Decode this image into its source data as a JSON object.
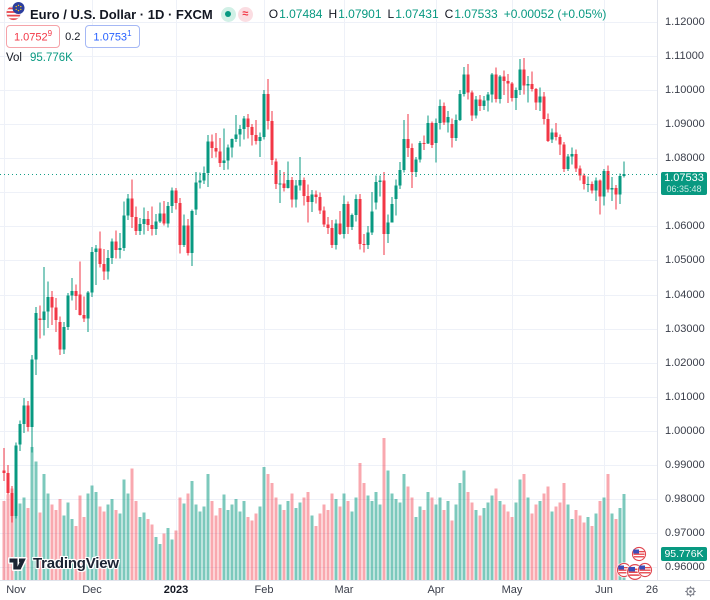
{
  "header": {
    "symbol_title": "Euro / U.S. Dollar · 1D · FXCM",
    "status": {
      "market_open_icon": "green-dot",
      "delayed_icon": "≈"
    },
    "ohlc": {
      "o_label": "O",
      "o": "1.07484",
      "h_label": "H",
      "h": "1.07901",
      "l_label": "L",
      "l": "1.07431",
      "c_label": "C",
      "c": "1.07533",
      "change": "+0.00052 (+0.05%)"
    },
    "bid": {
      "main": "1.0752",
      "sup": "9"
    },
    "spread": "0.2",
    "ask": {
      "main": "1.0753",
      "sup": "1"
    },
    "vol_label": "Vol",
    "vol_value": "95.776K"
  },
  "price_axis": {
    "ticks": [
      "1.12000",
      "1.11000",
      "1.10000",
      "1.09000",
      "1.08000",
      "1.07000",
      "1.06000",
      "1.05000",
      "1.04000",
      "1.03000",
      "1.02000",
      "1.01000",
      "1.00000",
      "0.99000",
      "0.98000",
      "0.97000",
      "0.96000"
    ],
    "last_price_label": "1.07533",
    "countdown": "06:35:48",
    "volume_label": "95.776K"
  },
  "time_axis": {
    "ticks": [
      {
        "label": "Nov",
        "i": 0
      },
      {
        "label": "Dec",
        "i": 22
      },
      {
        "label": "2023",
        "i": 43,
        "bold": true
      },
      {
        "label": "Feb",
        "i": 65
      },
      {
        "label": "Mar",
        "i": 85
      },
      {
        "label": "Apr",
        "i": 108
      },
      {
        "label": "May",
        "i": 127
      },
      {
        "label": "Jun",
        "i": 150
      },
      {
        "label": "26",
        "i": 162,
        "grid": false
      }
    ]
  },
  "logo": {
    "text": "TradingView"
  },
  "chart_data": {
    "type": "candlestick+volume",
    "title": "Euro / U.S. Dollar",
    "interval": "1D",
    "exchange": "FXCM",
    "price_range": [
      0.96,
      1.12
    ],
    "y_tick_step": 0.01,
    "last_price": 1.07533,
    "current_candle": {
      "o": 1.07484,
      "h": 1.07901,
      "l": 1.07431,
      "c": 1.07533,
      "change": 0.00052,
      "change_pct": 0.05,
      "volume_k": 95.776
    },
    "legend_position": "top-left",
    "grid": true,
    "candles": [
      [
        0.9883,
        0.995,
        0.9853,
        0.9876
      ],
      [
        0.9876,
        0.9899,
        0.9813,
        0.9817
      ],
      [
        0.9817,
        0.9838,
        0.973,
        0.975
      ],
      [
        0.975,
        0.9965,
        0.9742,
        0.9957
      ],
      [
        0.996,
        1.003,
        0.994,
        1.002
      ],
      [
        1.002,
        1.0096,
        0.9994,
        1.0074
      ],
      [
        1.0074,
        1.0088,
        0.9998,
        1.0011
      ],
      [
        1.0011,
        1.0222,
        0.9936,
        1.0209
      ],
      [
        1.0209,
        1.0364,
        1.0163,
        1.0346
      ],
      [
        1.033,
        1.0368,
        1.0271,
        1.0325
      ],
      [
        1.0325,
        1.0481,
        1.028,
        1.035
      ],
      [
        1.035,
        1.0438,
        1.0302,
        1.0393
      ],
      [
        1.0393,
        1.041,
        1.031,
        1.0362
      ],
      [
        1.0362,
        1.039,
        1.029,
        1.0325
      ],
      [
        1.032,
        1.0335,
        1.0223,
        1.0239
      ],
      [
        1.0239,
        1.032,
        1.0226,
        1.0304
      ],
      [
        1.0304,
        1.0405,
        1.0296,
        1.0397
      ],
      [
        1.0397,
        1.0448,
        1.0382,
        1.041
      ],
      [
        1.041,
        1.0429,
        1.0354,
        1.0396
      ],
      [
        1.04,
        1.0497,
        1.0338,
        1.034
      ],
      [
        1.034,
        1.0394,
        1.0319,
        1.0329
      ],
      [
        1.0329,
        1.041,
        1.029,
        1.0406
      ],
      [
        1.0406,
        1.0539,
        1.0393,
        1.0525
      ],
      [
        1.0525,
        1.0545,
        1.0428,
        1.0535
      ],
      [
        1.0535,
        1.0585,
        1.048,
        1.049
      ],
      [
        1.049,
        1.0534,
        1.0443,
        1.0468
      ],
      [
        1.0468,
        1.0531,
        1.0444,
        1.0507
      ],
      [
        1.0507,
        1.0564,
        1.0489,
        1.0556
      ],
      [
        1.0556,
        1.0588,
        1.0505,
        1.0531
      ],
      [
        1.0531,
        1.058,
        1.0505,
        1.0536
      ],
      [
        1.0536,
        1.0673,
        1.0528,
        1.0632
      ],
      [
        1.0632,
        1.0695,
        1.0618,
        1.0682
      ],
      [
        1.0682,
        1.0737,
        1.0595,
        1.0628
      ],
      [
        1.0628,
        1.0658,
        1.0575,
        1.0586
      ],
      [
        1.0586,
        1.0625,
        1.0574,
        1.0607
      ],
      [
        1.0607,
        1.0656,
        1.0576,
        1.0622
      ],
      [
        1.0622,
        1.0645,
        1.0586,
        1.0604
      ],
      [
        1.0604,
        1.0659,
        1.0573,
        1.0593
      ],
      [
        1.0593,
        1.0636,
        1.0575,
        1.0614
      ],
      [
        1.0614,
        1.067,
        1.061,
        1.0638
      ],
      [
        1.0638,
        1.0675,
        1.0603,
        1.0609
      ],
      [
        1.0609,
        1.0672,
        1.0596,
        1.066
      ],
      [
        1.066,
        1.0714,
        1.064,
        1.0705
      ],
      [
        1.0705,
        1.0712,
        1.065,
        1.0668
      ],
      [
        1.0668,
        1.0683,
        1.052,
        1.0546
      ],
      [
        1.0546,
        1.0635,
        1.054,
        1.0603
      ],
      [
        1.0603,
        1.0621,
        1.0515,
        1.0522
      ],
      [
        1.0522,
        1.065,
        1.0483,
        1.0645
      ],
      [
        1.065,
        1.076,
        1.0634,
        1.0729
      ],
      [
        1.0729,
        1.0758,
        1.0711,
        1.0735
      ],
      [
        1.0735,
        1.0776,
        1.0724,
        1.0756
      ],
      [
        1.0756,
        1.0868,
        1.0715,
        1.0849
      ],
      [
        1.0849,
        1.0869,
        1.0801,
        1.083
      ],
      [
        1.083,
        1.0874,
        1.0802,
        1.082
      ],
      [
        1.082,
        1.086,
        1.0775,
        1.0786
      ],
      [
        1.0786,
        1.0887,
        1.0766,
        1.0794
      ],
      [
        1.0794,
        1.084,
        1.0767,
        1.0832
      ],
      [
        1.0832,
        1.0858,
        1.0802,
        1.0856
      ],
      [
        1.0856,
        1.0927,
        1.0848,
        1.087
      ],
      [
        1.087,
        1.0898,
        1.0835,
        1.0886
      ],
      [
        1.0886,
        1.0924,
        1.0855,
        1.0916
      ],
      [
        1.0916,
        1.093,
        1.0858,
        1.0892
      ],
      [
        1.0892,
        1.09,
        1.0838,
        1.0868
      ],
      [
        1.0868,
        1.0913,
        1.084,
        1.085
      ],
      [
        1.085,
        1.0875,
        1.0803,
        1.0863
      ],
      [
        1.0863,
        1.1001,
        1.0855,
        1.0988
      ],
      [
        1.0988,
        1.1033,
        1.0885,
        1.091
      ],
      [
        1.091,
        1.0938,
        1.078,
        1.0795
      ],
      [
        1.079,
        1.08,
        1.0709,
        1.0725
      ],
      [
        1.0725,
        1.0765,
        1.0669,
        1.0726
      ],
      [
        1.0726,
        1.076,
        1.0702,
        1.0713
      ],
      [
        1.0713,
        1.0791,
        1.0711,
        1.0736
      ],
      [
        1.0736,
        1.0745,
        1.0656,
        1.0679
      ],
      [
        1.0679,
        1.0736,
        1.0656,
        1.072
      ],
      [
        1.072,
        1.0804,
        1.0706,
        1.0736
      ],
      [
        1.0736,
        1.0744,
        1.0661,
        1.0689
      ],
      [
        1.0689,
        1.0723,
        1.0612,
        1.0672
      ],
      [
        1.0672,
        1.0707,
        1.0642,
        1.0694
      ],
      [
        1.0694,
        1.0706,
        1.0667,
        1.0686
      ],
      [
        1.0686,
        1.0699,
        1.0636,
        1.0646
      ],
      [
        1.0646,
        1.0658,
        1.0598,
        1.0605
      ],
      [
        1.0605,
        1.0628,
        1.0577,
        1.0595
      ],
      [
        1.0595,
        1.0618,
        1.0536,
        1.0546
      ],
      [
        1.0546,
        1.062,
        1.0532,
        1.0609
      ],
      [
        1.0609,
        1.0645,
        1.0575,
        1.0577
      ],
      [
        1.0577,
        1.0691,
        1.0565,
        1.0666
      ],
      [
        1.0666,
        1.0673,
        1.0577,
        1.0598
      ],
      [
        1.0598,
        1.0638,
        1.059,
        1.0634
      ],
      [
        1.0634,
        1.0694,
        1.0614,
        1.068
      ],
      [
        1.068,
        1.0695,
        1.0532,
        1.0548
      ],
      [
        1.0548,
        1.0577,
        1.0524,
        1.0545
      ],
      [
        1.0545,
        1.0601,
        1.0533,
        1.0582
      ],
      [
        1.0582,
        1.0701,
        1.0575,
        1.0643
      ],
      [
        1.067,
        1.0749,
        1.065,
        1.073
      ],
      [
        1.073,
        1.075,
        1.0688,
        1.0735
      ],
      [
        1.0735,
        1.076,
        1.0516,
        1.0577
      ],
      [
        1.0577,
        1.0635,
        1.0551,
        1.0611
      ],
      [
        1.0611,
        1.0686,
        1.0611,
        1.0665
      ],
      [
        1.068,
        1.0737,
        1.0632,
        1.072
      ],
      [
        1.072,
        1.0789,
        1.0709,
        1.0766
      ],
      [
        1.0766,
        1.0912,
        1.0758,
        1.0857
      ],
      [
        1.0857,
        1.093,
        1.0803,
        1.083
      ],
      [
        1.083,
        1.0843,
        1.0713,
        1.076
      ],
      [
        1.076,
        1.0804,
        1.0745,
        1.0796
      ],
      [
        1.0796,
        1.085,
        1.0787,
        1.0845
      ],
      [
        1.0845,
        1.0867,
        1.0824,
        1.0843
      ],
      [
        1.0843,
        1.0926,
        1.0842,
        1.0903
      ],
      [
        1.0903,
        1.0908,
        1.083,
        1.0839
      ],
      [
        1.0845,
        1.0916,
        1.0788,
        1.0904
      ],
      [
        1.0904,
        1.0973,
        1.0885,
        1.0953
      ],
      [
        1.0953,
        1.0964,
        1.0898,
        1.0905
      ],
      [
        1.0905,
        1.0938,
        1.0875,
        1.0921
      ],
      [
        1.09,
        1.0917,
        1.0831,
        1.086
      ],
      [
        1.086,
        1.0928,
        1.0851,
        1.0912
      ],
      [
        1.0912,
        1.1,
        1.091,
        1.0989
      ],
      [
        1.0989,
        1.1068,
        1.0981,
        1.1046
      ],
      [
        1.1046,
        1.1076,
        1.0973,
        1.0993
      ],
      [
        1.0993,
        1.0999,
        1.0909,
        1.0926
      ],
      [
        1.0926,
        1.0983,
        1.0917,
        1.0972
      ],
      [
        1.0972,
        1.0985,
        1.0938,
        1.0954
      ],
      [
        1.0954,
        1.0983,
        1.0941,
        1.097
      ],
      [
        1.097,
        1.0995,
        1.0937,
        1.0987
      ],
      [
        1.0987,
        1.105,
        1.0963,
        1.1046
      ],
      [
        1.1046,
        1.1067,
        1.0964,
        1.0974
      ],
      [
        1.0974,
        1.1044,
        1.0961,
        1.104
      ],
      [
        1.104,
        1.1058,
        1.0986,
        1.1027
      ],
      [
        1.1027,
        1.1047,
        1.0962,
        1.1019
      ],
      [
        1.1019,
        1.1024,
        1.0966,
        1.0977
      ],
      [
        1.0977,
        1.1008,
        1.0942,
        1.1
      ],
      [
        1.1,
        1.1091,
        1.0986,
        1.106
      ],
      [
        1.106,
        1.1095,
        1.0987,
        1.1013
      ],
      [
        1.1013,
        1.1042,
        1.0963,
        1.1018
      ],
      [
        1.1018,
        1.1054,
        1.0996,
        1.1004
      ],
      [
        1.1004,
        1.1006,
        1.0941,
        1.0963
      ],
      [
        1.0963,
        1.1007,
        1.0939,
        1.0982
      ],
      [
        1.0982,
        1.0995,
        1.0899,
        1.0915
      ],
      [
        1.0915,
        1.0931,
        1.0848,
        1.085
      ],
      [
        1.0855,
        1.0887,
        1.0845,
        1.0875
      ],
      [
        1.0875,
        1.0904,
        1.0852,
        1.0863
      ],
      [
        1.0863,
        1.087,
        1.081,
        1.084
      ],
      [
        1.084,
        1.0848,
        1.076,
        1.0768
      ],
      [
        1.0768,
        1.0812,
        1.0762,
        1.0805
      ],
      [
        1.0805,
        1.0831,
        1.0781,
        1.0812
      ],
      [
        1.0812,
        1.0826,
        1.0759,
        1.077
      ],
      [
        1.077,
        1.0779,
        1.0735,
        1.075
      ],
      [
        1.075,
        1.0755,
        1.0708,
        1.0724
      ],
      [
        1.0724,
        1.0746,
        1.0701,
        1.0724
      ],
      [
        1.0724,
        1.0732,
        1.0696,
        1.0706
      ],
      [
        1.0706,
        1.0744,
        1.0674,
        1.0734
      ],
      [
        1.0734,
        1.0738,
        1.0635,
        1.0687
      ],
      [
        1.0687,
        1.0768,
        1.0661,
        1.0762
      ],
      [
        1.0762,
        1.0779,
        1.0699,
        1.0708
      ],
      [
        1.0708,
        1.0745,
        1.0675,
        1.0713
      ],
      [
        1.0713,
        1.0722,
        1.065,
        1.0694
      ],
      [
        1.0694,
        1.0755,
        1.0665,
        1.0748
      ],
      [
        1.07484,
        1.07901,
        1.07431,
        1.07533
      ]
    ],
    "volumes_k": [
      88,
      95,
      102,
      128,
      85,
      92,
      80,
      148,
      132,
      75,
      118,
      96,
      84,
      78,
      90,
      72,
      86,
      68,
      60,
      94,
      70,
      96,
      105,
      98,
      82,
      76,
      84,
      90,
      78,
      74,
      112,
      96,
      124,
      88,
      70,
      75,
      68,
      62,
      48,
      40,
      52,
      58,
      45,
      55,
      92,
      85,
      96,
      110,
      84,
      76,
      82,
      118,
      88,
      72,
      80,
      95,
      78,
      84,
      90,
      76,
      88,
      70,
      66,
      74,
      82,
      126,
      118,
      108,
      92,
      84,
      78,
      88,
      96,
      80,
      86,
      92,
      98,
      72,
      60,
      74,
      84,
      78,
      96,
      90,
      82,
      96,
      88,
      76,
      92,
      130,
      108,
      94,
      88,
      98,
      84,
      158,
      122,
      96,
      90,
      86,
      118,
      104,
      92,
      70,
      82,
      78,
      98,
      92,
      84,
      92,
      78,
      88,
      66,
      84,
      108,
      122,
      98,
      86,
      78,
      72,
      80,
      86,
      94,
      102,
      88,
      84,
      76,
      70,
      86,
      112,
      118,
      92,
      74,
      84,
      88,
      96,
      104,
      76,
      82,
      86,
      108,
      84,
      68,
      78,
      72,
      64,
      70,
      60,
      74,
      88,
      92,
      118,
      74,
      68,
      80,
      95.776
    ],
    "colors": {
      "up": "#089981",
      "down": "#F23645",
      "volume_up": "rgba(8,153,129,0.53)",
      "volume_down": "rgba(242,54,69,0.43)",
      "grid": "#eef1f8",
      "axis_text": "#3a3e4a",
      "last_price_badge": "#089981"
    }
  },
  "event_markers": {
    "flag": "us-flag",
    "single_count": 1,
    "cluster_count": 3
  }
}
